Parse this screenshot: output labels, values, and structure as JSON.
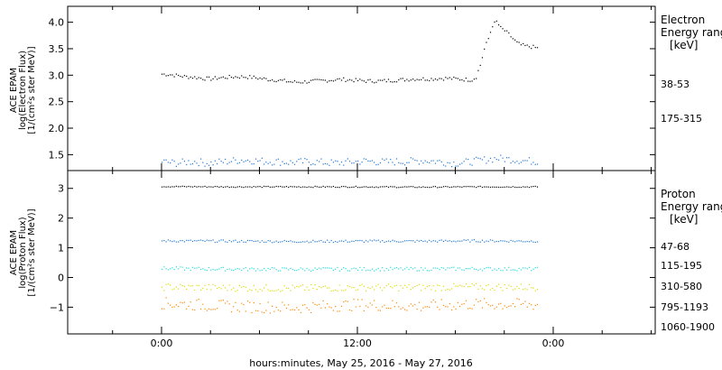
{
  "chart_data": [
    {
      "type": "scatter",
      "panel": "top",
      "ylabel": [
        "ACE EPAM",
        "log(Electron Flux)",
        "[1/(cm²s ster MeV)]"
      ],
      "ylim": [
        1.2,
        4.3
      ],
      "yticks": [
        1.5,
        2.0,
        2.5,
        3.0,
        3.5,
        4.0
      ],
      "ytick_labels": [
        "1.5",
        "2.0",
        "2.5",
        "3.0",
        "3.5",
        "4.0"
      ],
      "legend_title": [
        "Electron",
        "Energy range",
        "[keV]"
      ],
      "series": [
        {
          "name": "38-53",
          "color": "#000000",
          "points": [
            [
              0,
              3.03
            ],
            [
              1,
              3.02
            ],
            [
              2,
              3.0
            ],
            [
              3,
              2.98
            ],
            [
              4,
              2.97
            ],
            [
              5,
              2.95
            ],
            [
              6,
              2.94
            ],
            [
              7,
              2.96
            ],
            [
              8,
              2.97
            ],
            [
              9,
              2.98
            ],
            [
              10,
              2.98
            ],
            [
              11,
              2.97
            ],
            [
              12,
              2.95
            ],
            [
              13,
              2.93
            ],
            [
              14,
              2.92
            ],
            [
              15,
              2.9
            ],
            [
              16,
              2.88
            ],
            [
              17,
              2.88
            ],
            [
              18,
              2.89
            ],
            [
              19,
              2.9
            ],
            [
              20,
              2.91
            ],
            [
              21,
              2.92
            ],
            [
              22,
              2.93
            ],
            [
              23,
              2.92
            ],
            [
              24,
              2.91
            ],
            [
              25,
              2.9
            ],
            [
              26,
              2.9
            ],
            [
              27,
              2.9
            ],
            [
              28,
              2.91
            ],
            [
              29,
              2.92
            ],
            [
              30,
              2.93
            ],
            [
              31,
              2.94
            ],
            [
              32,
              2.94
            ],
            [
              33,
              2.94
            ],
            [
              34,
              2.95
            ],
            [
              35,
              2.95
            ],
            [
              36,
              2.94
            ],
            [
              37,
              2.93
            ],
            [
              38,
              2.92
            ],
            [
              38.5,
              2.98
            ],
            [
              39,
              3.2
            ],
            [
              39.5,
              3.5
            ],
            [
              40,
              3.7
            ],
            [
              40.5,
              3.95
            ],
            [
              41,
              4.02
            ],
            [
              41.5,
              3.9
            ],
            [
              42,
              3.85
            ],
            [
              42.5,
              3.78
            ],
            [
              43,
              3.7
            ],
            [
              43.5,
              3.62
            ],
            [
              44,
              3.58
            ],
            [
              44.5,
              3.56
            ],
            [
              45,
              3.55
            ],
            [
              45.5,
              3.54
            ],
            [
              46,
              3.52
            ]
          ]
        },
        {
          "name": "175-315",
          "color": "#1f77d4",
          "points": [
            [
              0,
              1.38
            ],
            [
              1,
              1.36
            ],
            [
              2,
              1.35
            ],
            [
              3,
              1.37
            ],
            [
              4,
              1.38
            ],
            [
              5,
              1.36
            ],
            [
              6,
              1.35
            ],
            [
              7,
              1.37
            ],
            [
              8,
              1.38
            ],
            [
              9,
              1.4
            ],
            [
              10,
              1.41
            ],
            [
              11,
              1.4
            ],
            [
              12,
              1.39
            ],
            [
              13,
              1.38
            ],
            [
              14,
              1.38
            ],
            [
              15,
              1.37
            ],
            [
              16,
              1.36
            ],
            [
              17,
              1.37
            ],
            [
              18,
              1.38
            ],
            [
              19,
              1.37
            ],
            [
              20,
              1.36
            ],
            [
              21,
              1.35
            ],
            [
              22,
              1.36
            ],
            [
              23,
              1.37
            ],
            [
              24,
              1.38
            ],
            [
              25,
              1.39
            ],
            [
              26,
              1.38
            ],
            [
              27,
              1.37
            ],
            [
              28,
              1.37
            ],
            [
              29,
              1.38
            ],
            [
              30,
              1.38
            ],
            [
              31,
              1.39
            ],
            [
              32,
              1.4
            ],
            [
              33,
              1.39
            ],
            [
              34,
              1.38
            ],
            [
              35,
              1.36
            ],
            [
              36,
              1.35
            ],
            [
              37,
              1.36
            ],
            [
              38,
              1.38
            ],
            [
              39,
              1.4
            ],
            [
              40,
              1.42
            ],
            [
              41,
              1.44
            ],
            [
              42,
              1.43
            ],
            [
              43,
              1.42
            ],
            [
              44,
              1.4
            ],
            [
              45,
              1.39
            ],
            [
              46,
              1.38
            ]
          ]
        }
      ]
    },
    {
      "type": "scatter",
      "panel": "bottom",
      "ylabel": [
        "ACE EPAM",
        "log(Proton Flux)",
        "[1/(cm²s ster MeV)]"
      ],
      "ylim": [
        -1.9,
        3.6
      ],
      "yticks": [
        -1,
        0,
        1,
        2,
        3
      ],
      "ytick_labels": [
        "−1",
        "0",
        "1",
        "2",
        "3"
      ],
      "legend_title": [
        "Proton",
        "Energy range",
        "[keV]"
      ],
      "series": [
        {
          "name": "47-68",
          "color": "#000000",
          "points": [
            [
              0,
              3.08
            ],
            [
              8,
              3.07
            ],
            [
              16,
              3.07
            ],
            [
              24,
              3.07
            ],
            [
              32,
              3.06
            ],
            [
              38,
              3.07
            ],
            [
              46,
              3.07
            ]
          ]
        },
        {
          "name": "115-195",
          "color": "#1f77d4",
          "points": [
            [
              0,
              1.25
            ],
            [
              8,
              1.24
            ],
            [
              16,
              1.23
            ],
            [
              24,
              1.24
            ],
            [
              32,
              1.24
            ],
            [
              38,
              1.25
            ],
            [
              46,
              1.24
            ]
          ]
        },
        {
          "name": "310-580",
          "color": "#22dddd",
          "points": [
            [
              0,
              0.32
            ],
            [
              8,
              0.3
            ],
            [
              16,
              0.29
            ],
            [
              24,
              0.3
            ],
            [
              32,
              0.3
            ],
            [
              38,
              0.31
            ],
            [
              46,
              0.3
            ]
          ]
        },
        {
          "name": "795-1193",
          "color": "#dddd00",
          "points": [
            [
              0,
              -0.3
            ],
            [
              8,
              -0.33
            ],
            [
              16,
              -0.35
            ],
            [
              24,
              -0.32
            ],
            [
              32,
              -0.32
            ],
            [
              38,
              -0.3
            ],
            [
              46,
              -0.31
            ]
          ]
        },
        {
          "name": "1060-1900",
          "color": "#ff8800",
          "points": [
            [
              0,
              -0.85
            ],
            [
              8,
              -0.95
            ],
            [
              16,
              -1.0
            ],
            [
              24,
              -0.9
            ],
            [
              32,
              -0.95
            ],
            [
              38,
              -0.88
            ],
            [
              46,
              -0.9
            ]
          ]
        }
      ]
    }
  ],
  "x_axis": {
    "unit": "hours",
    "range": [
      -11.5,
      60.5
    ],
    "tick_positions": [
      0,
      24,
      48
    ],
    "tick_labels": [
      "0:00",
      "12:00",
      "0:00"
    ],
    "title": "hours:minutes, May 25, 2016 - May 27, 2016"
  }
}
